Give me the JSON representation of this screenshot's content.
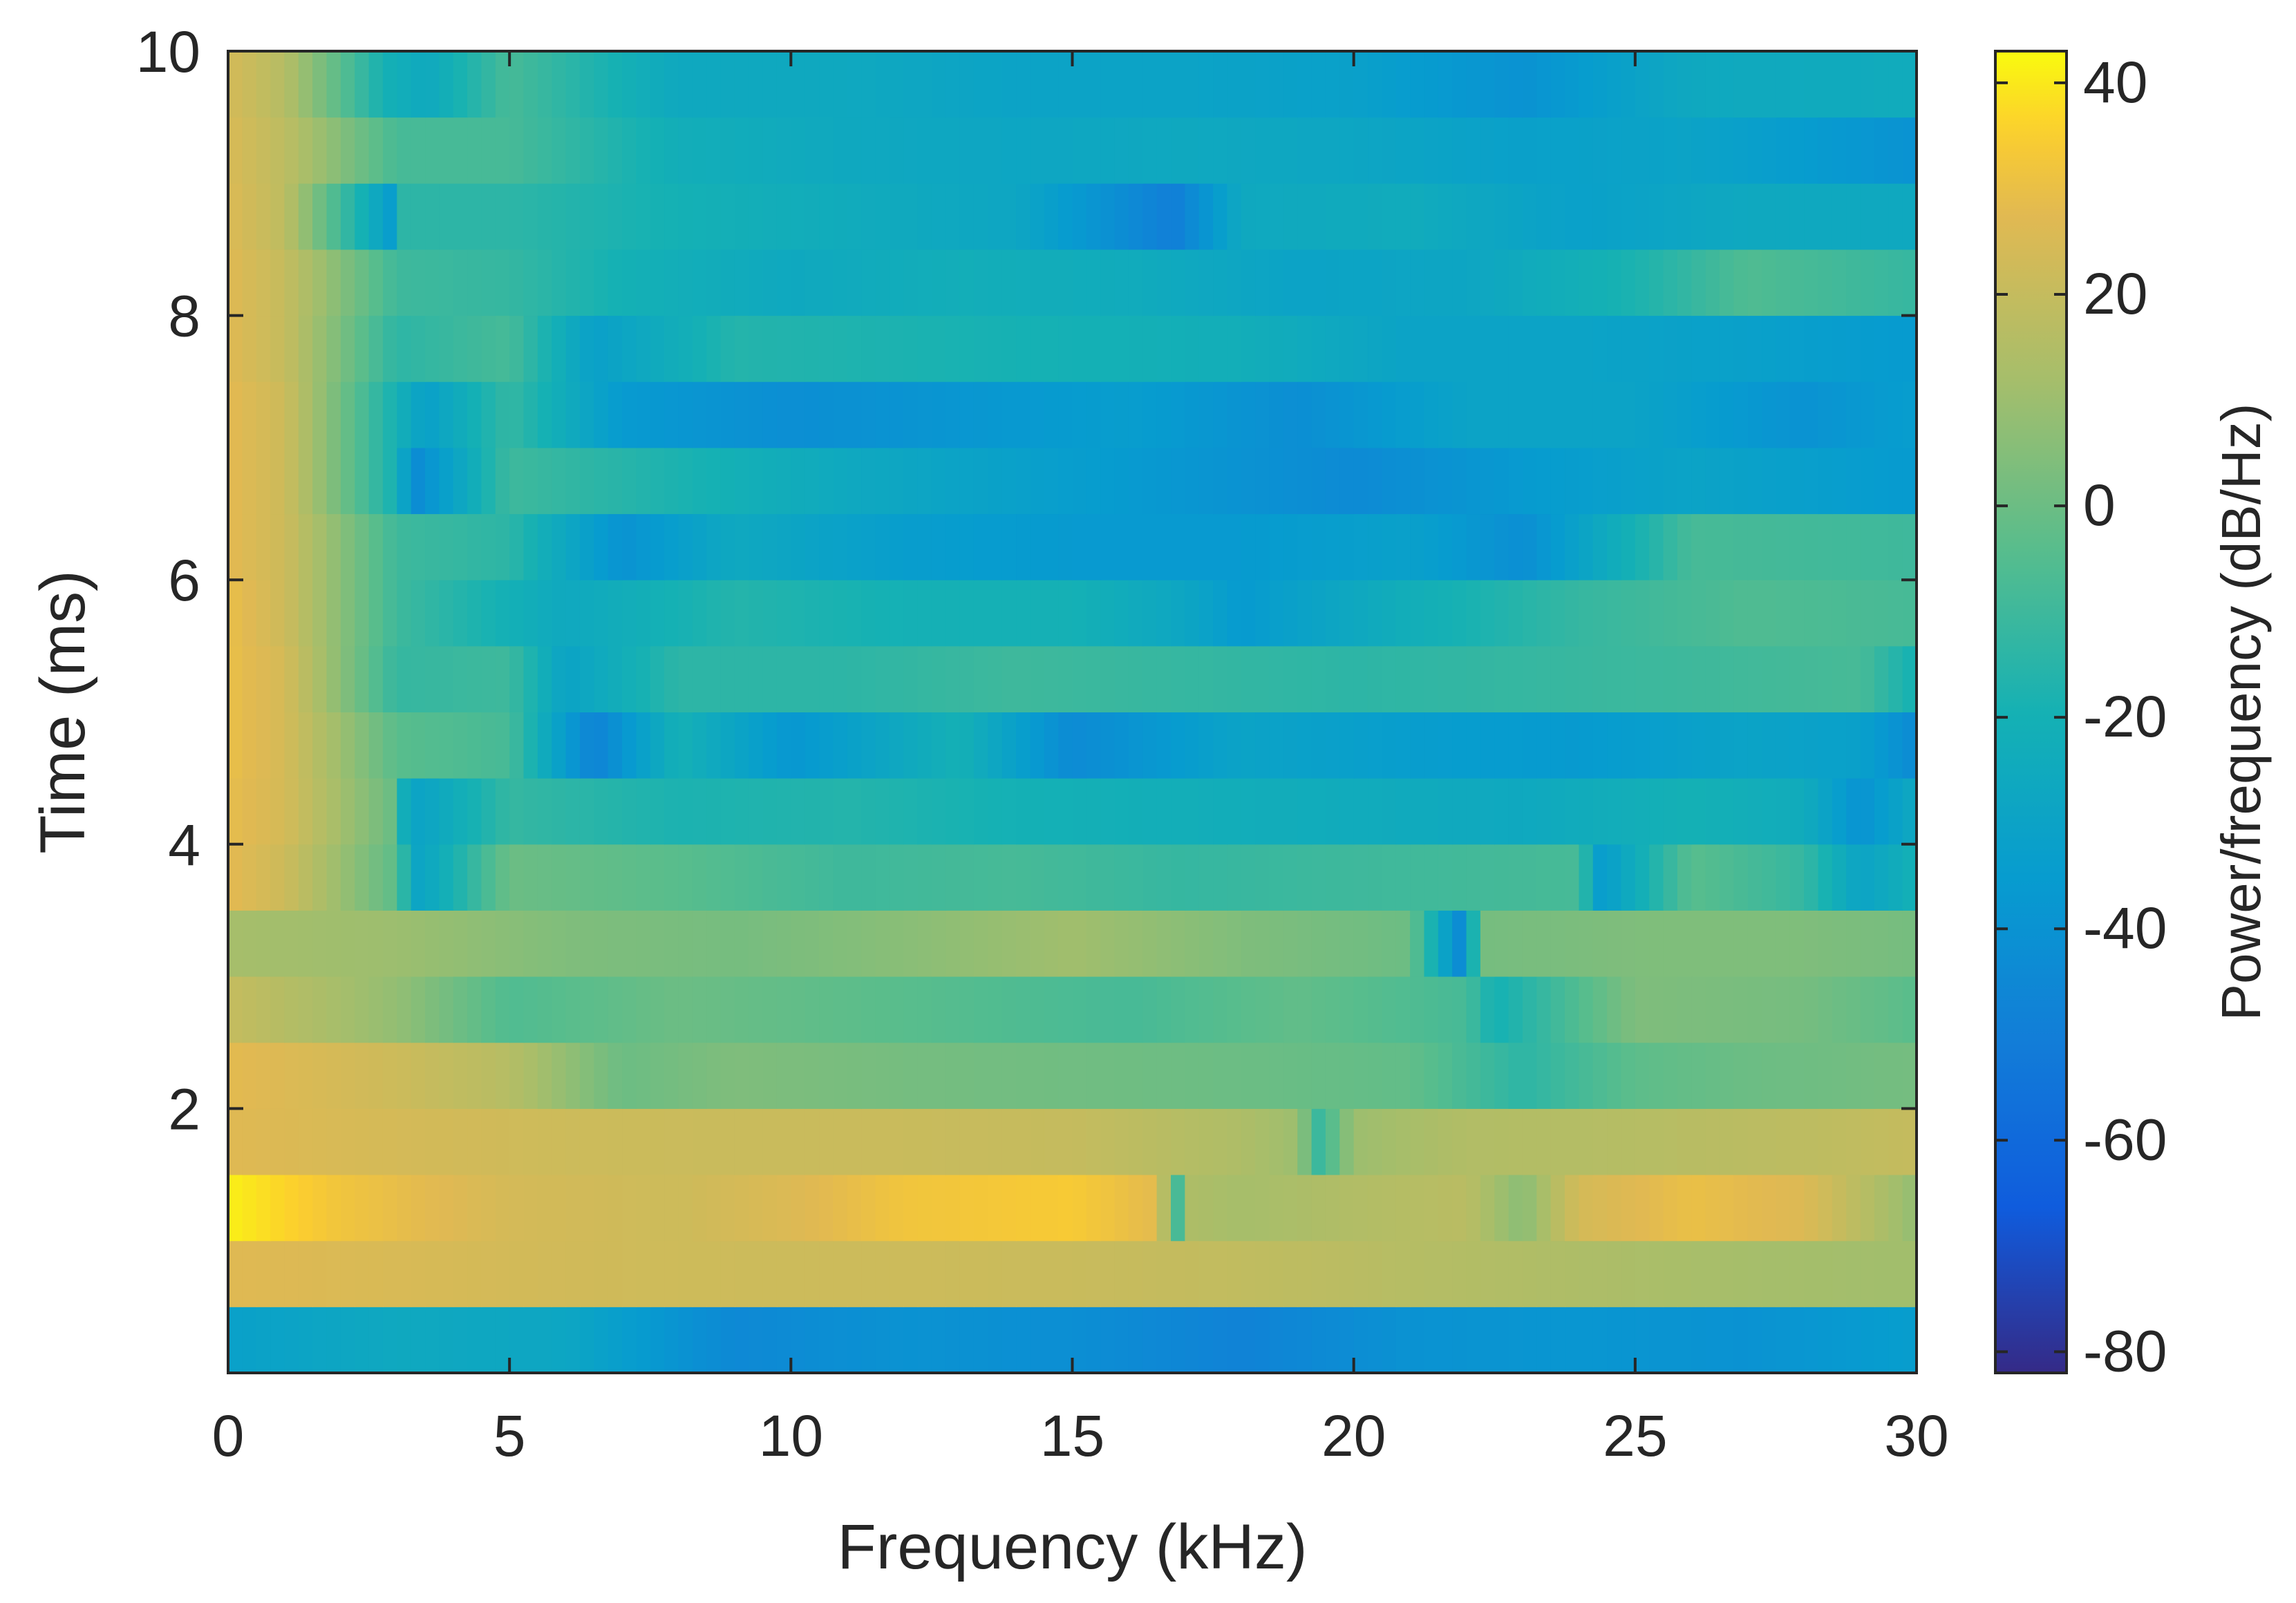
{
  "chart_data": {
    "type": "heatmap",
    "title": "",
    "xlabel": "Frequency (kHz)",
    "ylabel": "Time (ms)",
    "xlim": [
      0,
      30
    ],
    "ylim": [
      0,
      10
    ],
    "xticks": [
      0,
      5,
      10,
      15,
      20,
      25,
      30
    ],
    "xtick_labels": [
      "0",
      "5",
      "10",
      "15",
      "20",
      "25",
      "30"
    ],
    "yticks": [
      2,
      4,
      6,
      8,
      10
    ],
    "ytick_labels": [
      "2",
      "4",
      "6",
      "8",
      "10"
    ],
    "colorbar": {
      "label": "Power/frequency (dB/Hz)",
      "range": [
        -82,
        43
      ],
      "ticks": [
        -80,
        -60,
        -40,
        -20,
        0,
        20,
        40
      ],
      "tick_labels": [
        "-80",
        "-60",
        "-40",
        "-20",
        "0",
        "20",
        "40"
      ],
      "colormap": "parula"
    },
    "grid": false,
    "time_bin_ms": 0.5,
    "freq_bin_khz": 1,
    "rows": [
      {
        "time_ms": 0.25,
        "freq_khz": [
          0,
          3,
          6,
          9,
          12,
          15,
          18,
          21,
          24,
          27,
          30
        ],
        "power_db": [
          -32,
          -26,
          -28,
          -45,
          -40,
          -42,
          -48,
          -40,
          -38,
          -40,
          -34
        ]
      },
      {
        "time_ms": 0.75,
        "freq_khz": [
          0,
          3,
          6,
          9,
          12,
          15,
          18,
          21,
          24,
          27,
          30
        ],
        "power_db": [
          27,
          25,
          23,
          22,
          22,
          21,
          19,
          16,
          14,
          12,
          11
        ]
      },
      {
        "time_ms": 1.25,
        "freq_khz": [
          0,
          2,
          5,
          8,
          10,
          12,
          15,
          16.5,
          16.9,
          17.1,
          18,
          20,
          22,
          23,
          24,
          26,
          28,
          30
        ],
        "power_db": [
          41,
          32,
          24,
          22,
          26,
          32,
          34,
          28,
          -10,
          14,
          12,
          15,
          17,
          6,
          24,
          30,
          26,
          8
        ]
      },
      {
        "time_ms": 1.75,
        "freq_khz": [
          0,
          3,
          6,
          9,
          12,
          15,
          18,
          19,
          19.4,
          20,
          22,
          25,
          28,
          30
        ],
        "power_db": [
          27,
          24,
          22,
          21,
          21,
          20,
          14,
          10,
          -12,
          10,
          15,
          16,
          18,
          20
        ]
      },
      {
        "time_ms": 2.25,
        "freq_khz": [
          0,
          3,
          5,
          7,
          9,
          12,
          15,
          18,
          21,
          23,
          25,
          27,
          30
        ],
        "power_db": [
          28,
          22,
          16,
          0,
          4,
          2,
          1,
          0,
          -2,
          -14,
          -3,
          0,
          2
        ]
      },
      {
        "time_ms": 2.75,
        "freq_khz": [
          0,
          3,
          5,
          8,
          12,
          16,
          19,
          22,
          22.5,
          25,
          28,
          30
        ],
        "power_db": [
          20,
          8,
          -6,
          0,
          -4,
          -8,
          -2,
          -8,
          -20,
          4,
          2,
          -4
        ]
      },
      {
        "time_ms": 3.25,
        "freq_khz": [
          0,
          3,
          6,
          9,
          12,
          15,
          18,
          21,
          21.9,
          22.3,
          25,
          28,
          30
        ],
        "power_db": [
          12,
          10,
          4,
          2,
          6,
          11,
          4,
          0,
          -44,
          2,
          4,
          4,
          2
        ]
      },
      {
        "time_ms": 3.75,
        "freq_khz": [
          0,
          1,
          2.9,
          3.4,
          5,
          8,
          11,
          14,
          17,
          20,
          24,
          24.4,
          26,
          28,
          29,
          30
        ],
        "power_db": [
          28,
          22,
          -2,
          -30,
          0,
          -4,
          -10,
          -8,
          -12,
          -10,
          -8,
          -35,
          -4,
          -12,
          -30,
          -20
        ]
      },
      {
        "time_ms": 4.25,
        "freq_khz": [
          0,
          1,
          2.9,
          3.2,
          3.6,
          5,
          8,
          11,
          14,
          17,
          20,
          23,
          26,
          28,
          29,
          30
        ],
        "power_db": [
          29,
          24,
          0,
          -30,
          -28,
          -12,
          -18,
          -16,
          -20,
          -22,
          -24,
          -26,
          -20,
          -24,
          -40,
          -26
        ]
      },
      {
        "time_ms": 4.75,
        "freq_khz": [
          0,
          1,
          3,
          5,
          6.5,
          8,
          10,
          13,
          15,
          18,
          21,
          24,
          27,
          29,
          30
        ],
        "power_db": [
          30,
          24,
          -4,
          -8,
          -48,
          -20,
          -38,
          -20,
          -44,
          -30,
          -34,
          -36,
          -30,
          -32,
          -44
        ]
      },
      {
        "time_ms": 5.25,
        "freq_khz": [
          0,
          1,
          3,
          5,
          6,
          8,
          11,
          14,
          17,
          20,
          23,
          26,
          29,
          30
        ],
        "power_db": [
          30,
          24,
          -12,
          -10,
          -30,
          -14,
          -14,
          -10,
          -12,
          -14,
          -12,
          -10,
          -8,
          -20
        ]
      },
      {
        "time_ms": 5.75,
        "freq_khz": [
          0,
          1,
          3,
          6,
          9,
          12,
          15,
          17,
          18,
          21,
          24,
          27,
          30
        ],
        "power_db": [
          30,
          22,
          -10,
          -26,
          -16,
          -20,
          -20,
          -28,
          -36,
          -22,
          -12,
          -6,
          -8
        ]
      },
      {
        "time_ms": 6.25,
        "freq_khz": [
          0,
          1,
          3,
          5,
          7,
          9,
          12,
          15,
          18,
          21,
          23,
          26,
          30
        ],
        "power_db": [
          28,
          22,
          -10,
          -14,
          -40,
          -26,
          -34,
          -36,
          -36,
          -32,
          -42,
          -8,
          -10
        ]
      },
      {
        "time_ms": 6.75,
        "freq_khz": [
          0,
          1,
          3,
          3.3,
          5,
          8,
          11,
          14,
          17,
          20,
          23,
          26,
          30
        ],
        "power_db": [
          28,
          22,
          -20,
          -44,
          -10,
          -18,
          -26,
          -32,
          -38,
          -44,
          -36,
          -30,
          -36
        ]
      },
      {
        "time_ms": 7.25,
        "freq_khz": [
          0,
          1,
          3,
          3.5,
          5,
          7,
          10,
          13,
          16,
          19,
          22,
          25,
          28,
          30
        ],
        "power_db": [
          28,
          22,
          -20,
          -32,
          -12,
          -36,
          -42,
          -38,
          -34,
          -42,
          -30,
          -30,
          -40,
          -34
        ]
      },
      {
        "time_ms": 7.75,
        "freq_khz": [
          0,
          1,
          3,
          5,
          6.5,
          9,
          12,
          15,
          18,
          21,
          24,
          27,
          30
        ],
        "power_db": [
          27,
          20,
          -14,
          -8,
          -32,
          -16,
          -18,
          -20,
          -22,
          -30,
          -30,
          -32,
          -36
        ]
      },
      {
        "time_ms": 8.25,
        "freq_khz": [
          0,
          1,
          3,
          5,
          7,
          10,
          13,
          16,
          19,
          22,
          25,
          27,
          30
        ],
        "power_db": [
          27,
          20,
          -10,
          -12,
          -20,
          -26,
          -22,
          -24,
          -30,
          -28,
          -18,
          -6,
          -12
        ]
      },
      {
        "time_ms": 8.75,
        "freq_khz": [
          0,
          1,
          2.9,
          3.1,
          5,
          8,
          11,
          14,
          16.8,
          18,
          21,
          24,
          27,
          30
        ],
        "power_db": [
          26,
          18,
          -34,
          -14,
          -14,
          -20,
          -24,
          -28,
          -50,
          -26,
          -24,
          -32,
          -26,
          -26
        ]
      },
      {
        "time_ms": 9.25,
        "freq_khz": [
          0,
          1,
          3,
          5,
          8,
          11,
          14,
          17,
          20,
          23,
          26,
          30
        ],
        "power_db": [
          25,
          18,
          -8,
          -8,
          -22,
          -26,
          -28,
          -26,
          -28,
          -32,
          -30,
          -40
        ]
      },
      {
        "time_ms": 9.75,
        "freq_khz": [
          0,
          1,
          2.8,
          3.5,
          5,
          8,
          11,
          14,
          17,
          20,
          23,
          26,
          30
        ],
        "power_db": [
          24,
          16,
          -20,
          -26,
          -8,
          -26,
          -26,
          -30,
          -30,
          -32,
          -40,
          -26,
          -24
        ]
      }
    ]
  }
}
